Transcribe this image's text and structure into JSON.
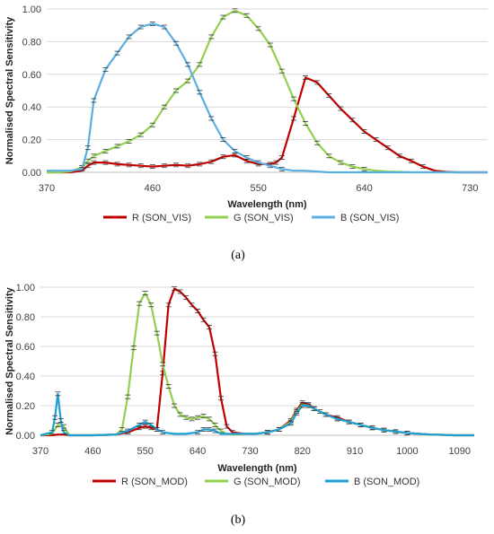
{
  "chart_data": [
    {
      "type": "line",
      "caption": "(a)",
      "xlabel": "Wavelength (nm)",
      "ylabel": "Normalised Spectral Sensitivity",
      "xlim": [
        370,
        745
      ],
      "ylim": [
        0,
        1.0
      ],
      "x_ticks": [
        370,
        460,
        550,
        640,
        730
      ],
      "y_ticks": [
        0,
        0.2,
        0.4,
        0.6,
        0.8,
        1.0
      ],
      "y_tick_labels": [
        "0.00",
        "0.20",
        "0.40",
        "0.60",
        "0.80",
        "1.00"
      ],
      "grid": "horizontal",
      "legend_position": "bottom",
      "error_bars": true,
      "series": [
        {
          "name": "R (SON_VIS)",
          "color": "#c00000",
          "x": [
            370,
            380,
            390,
            400,
            405,
            410,
            420,
            430,
            440,
            450,
            460,
            470,
            480,
            490,
            500,
            510,
            520,
            530,
            540,
            550,
            560,
            565,
            570,
            580,
            590,
            600,
            610,
            620,
            630,
            640,
            650,
            660,
            670,
            680,
            690,
            700,
            710,
            720,
            730,
            745
          ],
          "y": [
            0.0,
            0.0,
            0.0,
            0.01,
            0.04,
            0.06,
            0.06,
            0.05,
            0.045,
            0.04,
            0.035,
            0.04,
            0.045,
            0.04,
            0.05,
            0.065,
            0.095,
            0.105,
            0.07,
            0.05,
            0.05,
            0.06,
            0.09,
            0.33,
            0.58,
            0.55,
            0.47,
            0.39,
            0.32,
            0.25,
            0.2,
            0.15,
            0.1,
            0.07,
            0.035,
            0.01,
            0.003,
            0.0,
            0.0,
            0.0
          ]
        },
        {
          "name": "G (SON_VIS)",
          "color": "#92d050",
          "x": [
            370,
            380,
            390,
            400,
            405,
            410,
            420,
            430,
            440,
            450,
            460,
            470,
            480,
            490,
            500,
            510,
            520,
            530,
            540,
            550,
            560,
            570,
            580,
            590,
            600,
            610,
            620,
            630,
            640,
            650,
            660,
            670,
            680,
            690,
            700,
            710,
            720,
            730,
            745
          ],
          "y": [
            0.0,
            0.0,
            0.005,
            0.03,
            0.07,
            0.1,
            0.13,
            0.16,
            0.19,
            0.23,
            0.29,
            0.4,
            0.5,
            0.56,
            0.66,
            0.83,
            0.95,
            0.99,
            0.96,
            0.88,
            0.78,
            0.62,
            0.45,
            0.3,
            0.18,
            0.1,
            0.06,
            0.035,
            0.02,
            0.01,
            0.005,
            0.003,
            0.0,
            0.0,
            0.0,
            0.0,
            0.0,
            0.0,
            0.0
          ]
        },
        {
          "name": "B (SON_VIS)",
          "color": "#5bafe0",
          "x": [
            370,
            380,
            390,
            400,
            405,
            410,
            420,
            430,
            440,
            450,
            460,
            470,
            480,
            490,
            500,
            510,
            520,
            530,
            540,
            550,
            560,
            570,
            580,
            590,
            600,
            610,
            620,
            640,
            660,
            680,
            700,
            720,
            745
          ],
          "y": [
            0.01,
            0.01,
            0.01,
            0.02,
            0.15,
            0.44,
            0.63,
            0.73,
            0.83,
            0.89,
            0.91,
            0.89,
            0.79,
            0.66,
            0.49,
            0.33,
            0.2,
            0.13,
            0.09,
            0.06,
            0.04,
            0.02,
            0.01,
            0.01,
            0.005,
            0.0,
            0.0,
            0.0,
            0.0,
            0.0,
            0.0,
            0.0,
            0.0
          ]
        }
      ]
    },
    {
      "type": "line",
      "caption": "(b)",
      "xlabel": "Wavelength (nm)",
      "ylabel": "Normalised Spectral Sensitivity",
      "xlim": [
        370,
        1115
      ],
      "ylim": [
        0,
        1.0
      ],
      "x_ticks": [
        370,
        460,
        550,
        640,
        730,
        820,
        910,
        1000,
        1090
      ],
      "y_ticks": [
        0,
        0.2,
        0.4,
        0.6,
        0.8,
        1.0
      ],
      "y_tick_labels": [
        "0.00",
        "0.20",
        "0.40",
        "0.60",
        "0.80",
        "1.00"
      ],
      "grid": "horizontal",
      "legend_position": "bottom",
      "error_bars": true,
      "series": [
        {
          "name": "R (SON_MOD)",
          "color": "#c00000",
          "x": [
            370,
            390,
            400,
            410,
            420,
            460,
            500,
            520,
            540,
            550,
            560,
            570,
            580,
            590,
            600,
            610,
            620,
            630,
            640,
            650,
            660,
            670,
            680,
            690,
            700,
            720,
            740,
            760,
            780,
            800,
            810,
            820,
            830,
            840,
            850,
            860,
            880,
            900,
            920,
            940,
            960,
            980,
            1000,
            1020,
            1040,
            1060,
            1080,
            1100,
            1115
          ],
          "y": [
            0.0,
            0.0,
            0.005,
            0.005,
            0.0,
            0.0,
            0.005,
            0.02,
            0.05,
            0.06,
            0.05,
            0.04,
            0.42,
            0.88,
            0.99,
            0.97,
            0.93,
            0.88,
            0.84,
            0.78,
            0.73,
            0.55,
            0.25,
            0.06,
            0.02,
            0.01,
            0.01,
            0.02,
            0.04,
            0.1,
            0.17,
            0.22,
            0.21,
            0.18,
            0.16,
            0.14,
            0.12,
            0.09,
            0.07,
            0.05,
            0.035,
            0.025,
            0.015,
            0.01,
            0.005,
            0.003,
            0.0,
            0.0,
            0.0
          ]
        },
        {
          "name": "G (SON_MOD)",
          "color": "#92d050",
          "x": [
            370,
            390,
            400,
            410,
            420,
            460,
            500,
            510,
            520,
            530,
            540,
            550,
            560,
            570,
            580,
            590,
            600,
            610,
            620,
            630,
            640,
            650,
            660,
            670,
            680,
            690,
            700,
            720,
            740,
            760,
            780,
            800,
            810,
            820,
            830,
            840,
            860,
            880,
            900,
            920,
            940,
            960,
            980,
            1000,
            1020,
            1040,
            1060,
            1080,
            1100,
            1115
          ],
          "y": [
            0.0,
            0.01,
            0.07,
            0.06,
            0.0,
            0.0,
            0.005,
            0.04,
            0.26,
            0.59,
            0.89,
            0.96,
            0.88,
            0.69,
            0.48,
            0.33,
            0.2,
            0.14,
            0.12,
            0.11,
            0.12,
            0.13,
            0.11,
            0.07,
            0.03,
            0.01,
            0.005,
            0.01,
            0.01,
            0.02,
            0.04,
            0.09,
            0.16,
            0.21,
            0.2,
            0.18,
            0.14,
            0.11,
            0.09,
            0.07,
            0.05,
            0.035,
            0.025,
            0.015,
            0.01,
            0.005,
            0.003,
            0.0,
            0.0,
            0.0
          ]
        },
        {
          "name": "B (SON_MOD)",
          "color": "#1e9fd6",
          "x": [
            370,
            390,
            395,
            400,
            405,
            410,
            420,
            460,
            500,
            520,
            540,
            550,
            560,
            570,
            580,
            600,
            620,
            640,
            650,
            660,
            670,
            680,
            700,
            720,
            740,
            760,
            780,
            800,
            810,
            820,
            830,
            840,
            860,
            880,
            900,
            920,
            940,
            960,
            980,
            1000,
            1020,
            1040,
            1060,
            1080,
            1100,
            1115
          ],
          "y": [
            0.0,
            0.02,
            0.12,
            0.28,
            0.1,
            0.02,
            0.0,
            0.0,
            0.005,
            0.03,
            0.07,
            0.09,
            0.07,
            0.04,
            0.02,
            0.01,
            0.01,
            0.02,
            0.04,
            0.04,
            0.03,
            0.01,
            0.01,
            0.01,
            0.01,
            0.02,
            0.04,
            0.08,
            0.15,
            0.2,
            0.2,
            0.18,
            0.14,
            0.11,
            0.09,
            0.07,
            0.05,
            0.035,
            0.025,
            0.015,
            0.01,
            0.005,
            0.003,
            0.0,
            0.0,
            0.0
          ]
        }
      ]
    }
  ]
}
